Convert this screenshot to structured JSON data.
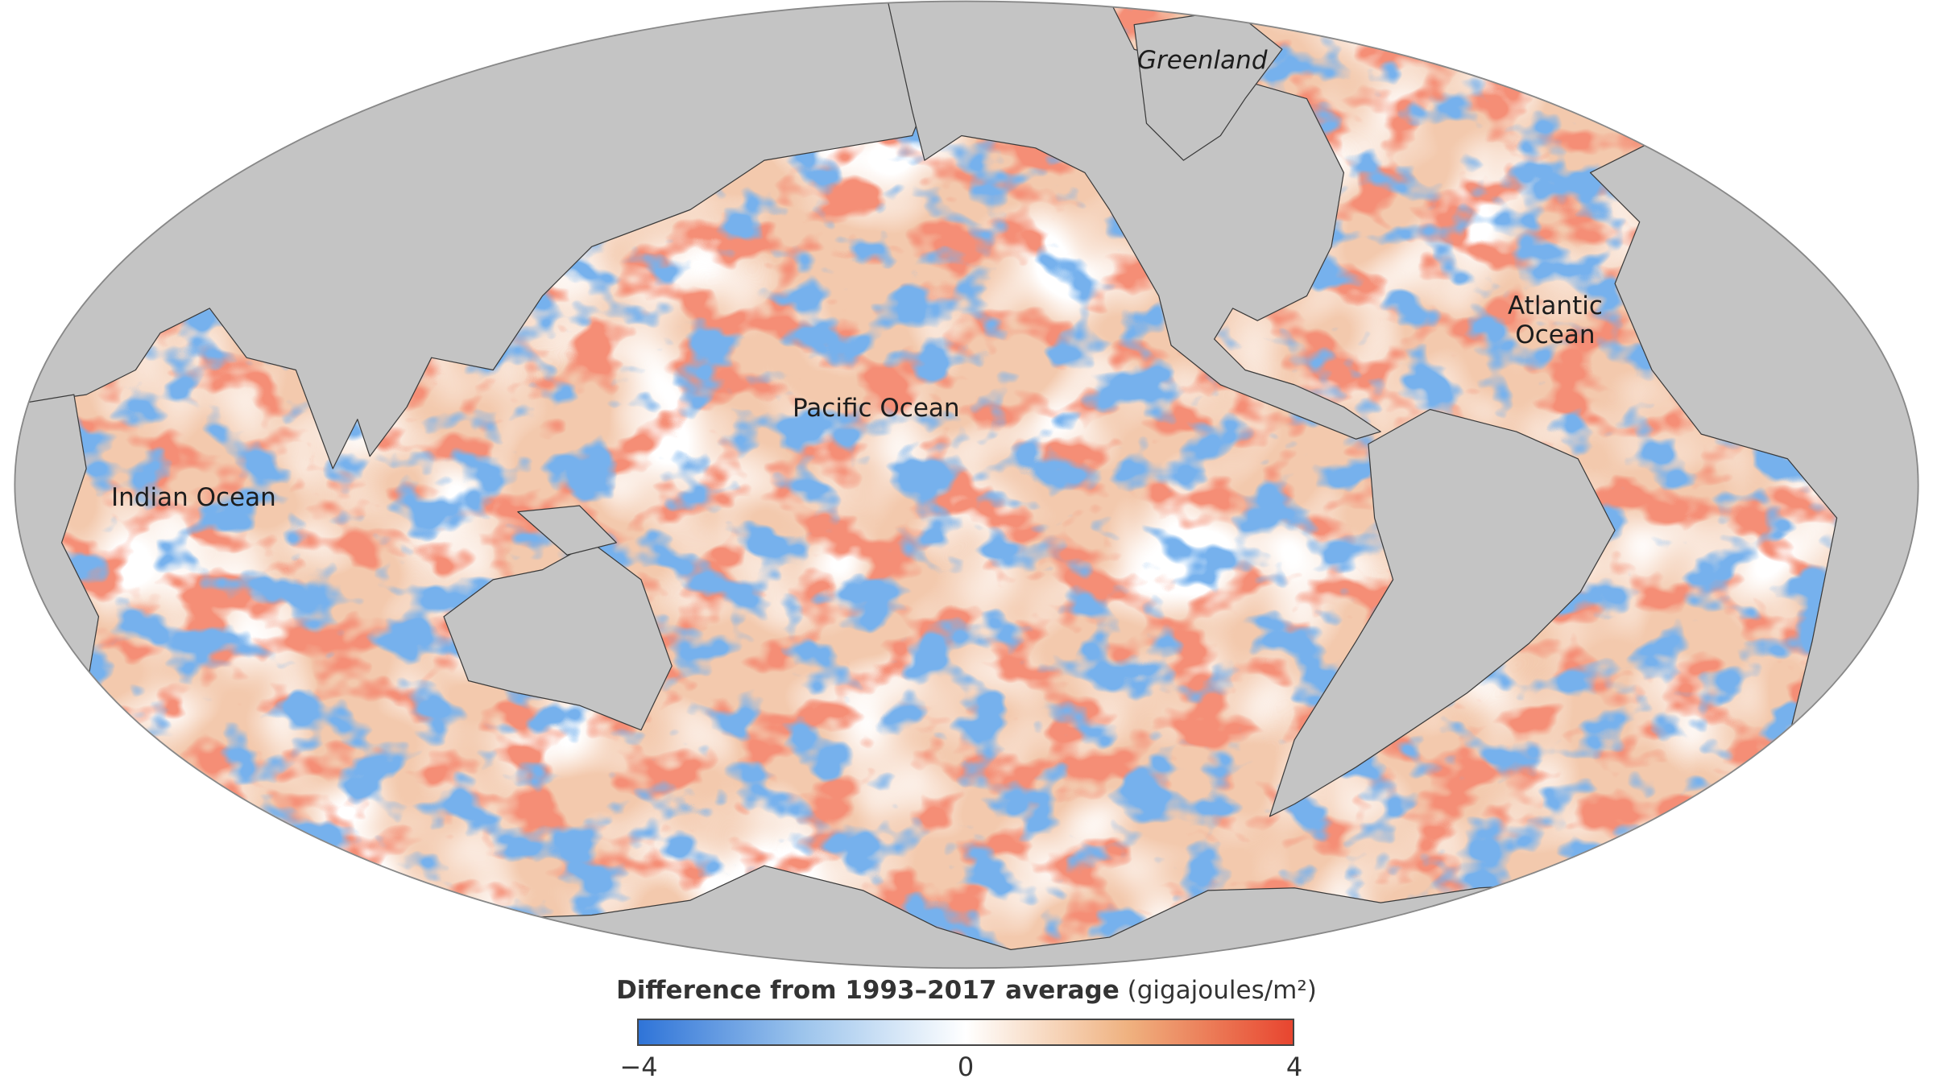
{
  "map": {
    "labels": {
      "greenland": "Greenland",
      "atlantic": [
        "Atlantic",
        "Ocean"
      ],
      "pacific": "Pacific Ocean",
      "indian": "Indian Ocean"
    },
    "colors": {
      "land": "#c4c4c4",
      "coast": "#3a3a3a",
      "warm": "#e8452f",
      "cool": "#2f6fd6",
      "neutral": "#f5dcc9"
    }
  },
  "legend": {
    "title": "Difference from 1993–2017 average",
    "units": "(gigajoules/m²)",
    "ticks": [
      "−4",
      "0",
      "4"
    ],
    "range": [
      -4,
      4
    ],
    "colors": [
      "#2f74d8",
      "#9cc4ec",
      "#ffffff",
      "#efb17f",
      "#e8452f"
    ]
  }
}
